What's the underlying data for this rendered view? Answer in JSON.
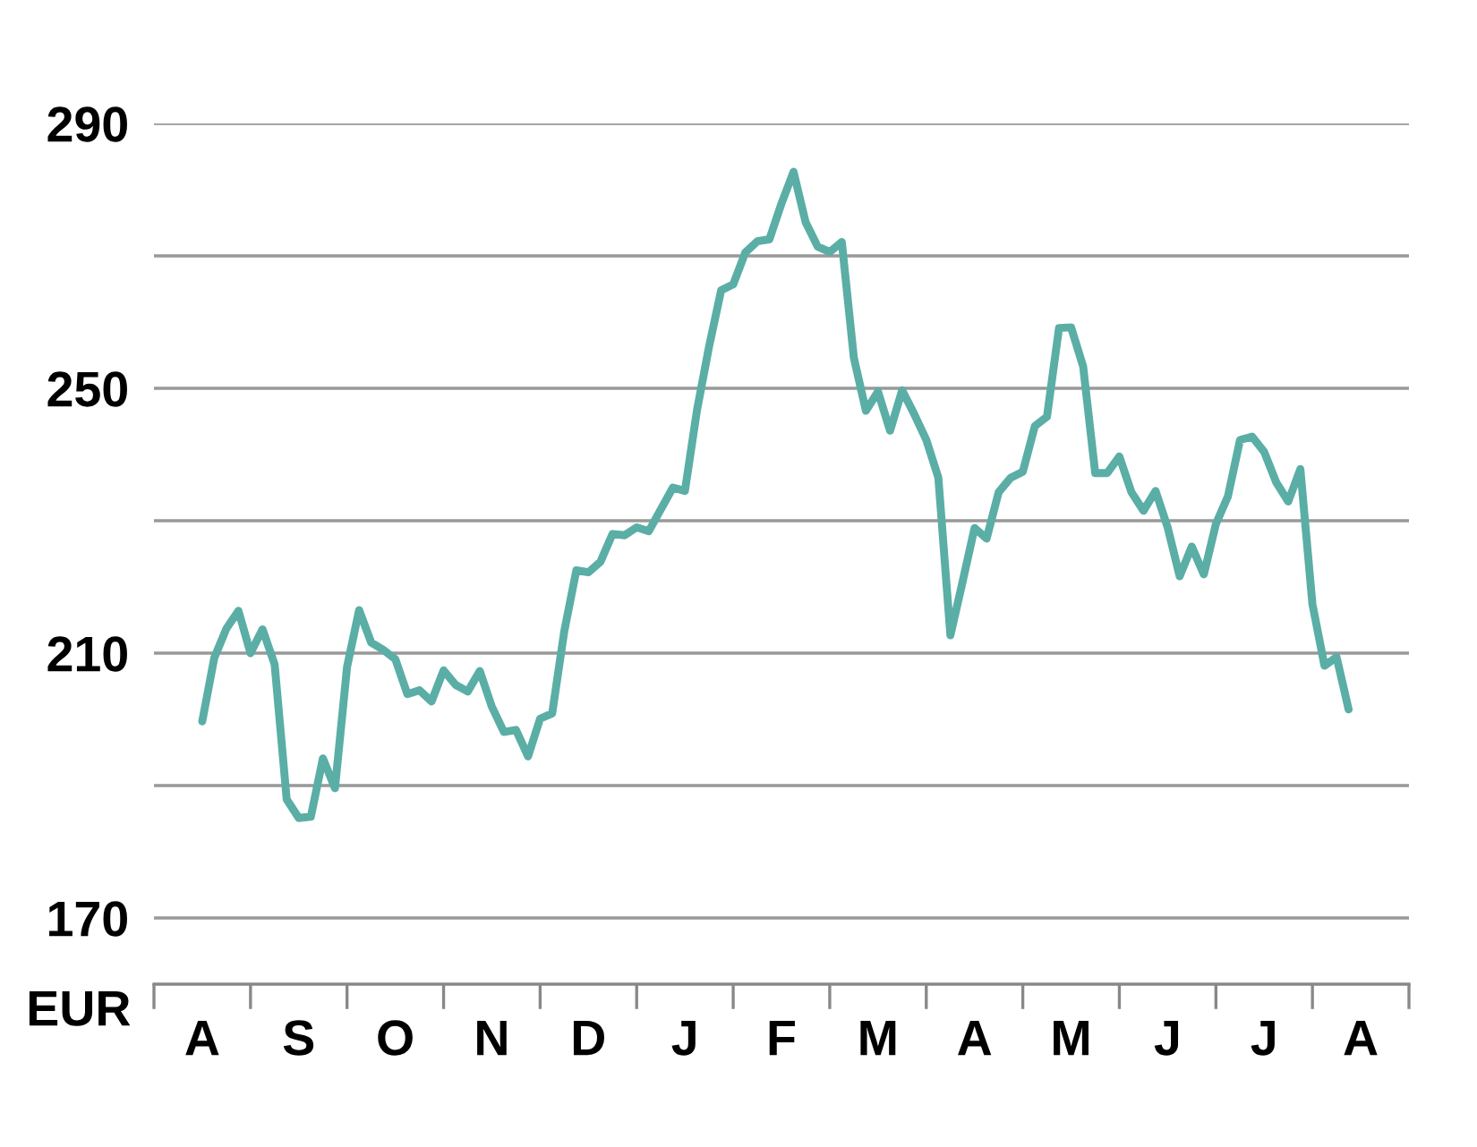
{
  "chart_data": {
    "type": "line",
    "ylabel": "EUR",
    "categories": [
      "A",
      null,
      null,
      null,
      null,
      null,
      null,
      null,
      "S",
      null,
      null,
      null,
      null,
      null,
      null,
      null,
      "O",
      null,
      null,
      null,
      null,
      null,
      null,
      null,
      "N",
      null,
      null,
      null,
      null,
      null,
      null,
      null,
      "D",
      null,
      null,
      null,
      null,
      null,
      null,
      null,
      "J",
      null,
      null,
      null,
      null,
      null,
      null,
      null,
      "F",
      null,
      null,
      null,
      null,
      null,
      null,
      null,
      "M",
      null,
      null,
      null,
      null,
      null,
      null,
      null,
      "A",
      null,
      null,
      null,
      null,
      null,
      null,
      null,
      "M",
      null,
      null,
      null,
      null,
      null,
      null,
      null,
      "J",
      null,
      null,
      null,
      null,
      null,
      null,
      null,
      "J",
      null,
      null,
      null,
      null,
      null,
      null,
      null,
      "A"
    ],
    "series": [
      {
        "color": "#5aaea6",
        "values": [
          199.7,
          209.3,
          213.7,
          216.4,
          210.0,
          213.6,
          208.3,
          187.9,
          185.1,
          185.3,
          194.1,
          189.6,
          207.9,
          216.5,
          211.6,
          210.5,
          209.1,
          203.8,
          204.4,
          202.7,
          207.4,
          205.2,
          204.2,
          207.3,
          201.9,
          198.1,
          198.4,
          194.4,
          200.1,
          200.9,
          213.3,
          222.5,
          222.2,
          223.8,
          228.0,
          227.8,
          229.0,
          228.4,
          231.7,
          235.0,
          234.5,
          246.7,
          256.3,
          264.8,
          265.7,
          270.5,
          272.2,
          272.5,
          277.9,
          282.7,
          275.1,
          271.4,
          270.6,
          272.1,
          254.6,
          246.6,
          249.5,
          243.6,
          249.7,
          246.1,
          242.2,
          236.5,
          212.7,
          220.7,
          228.9,
          227.3,
          234.3,
          236.5,
          237.4,
          244.3,
          245.7,
          259.1,
          259.2,
          253.3,
          237.2,
          237.2,
          239.7,
          234.3,
          231.5,
          234.5,
          229.0,
          221.6,
          226.1,
          221.9,
          229.5,
          233.7,
          242.2,
          242.7,
          240.4,
          235.8,
          232.9,
          237.8,
          217.4,
          208.1,
          209.4,
          201.5,
          null
        ]
      }
    ],
    "ylim": [
      160,
      290
    ],
    "yticks": [
      170,
      {
        "value": 190,
        "label": null
      },
      210,
      {
        "value": 230,
        "label": null
      },
      250,
      {
        "value": 270,
        "label": null
      },
      290
    ],
    "grid": "y",
    "legend": false,
    "marker": "none",
    "line_style": "solid"
  }
}
